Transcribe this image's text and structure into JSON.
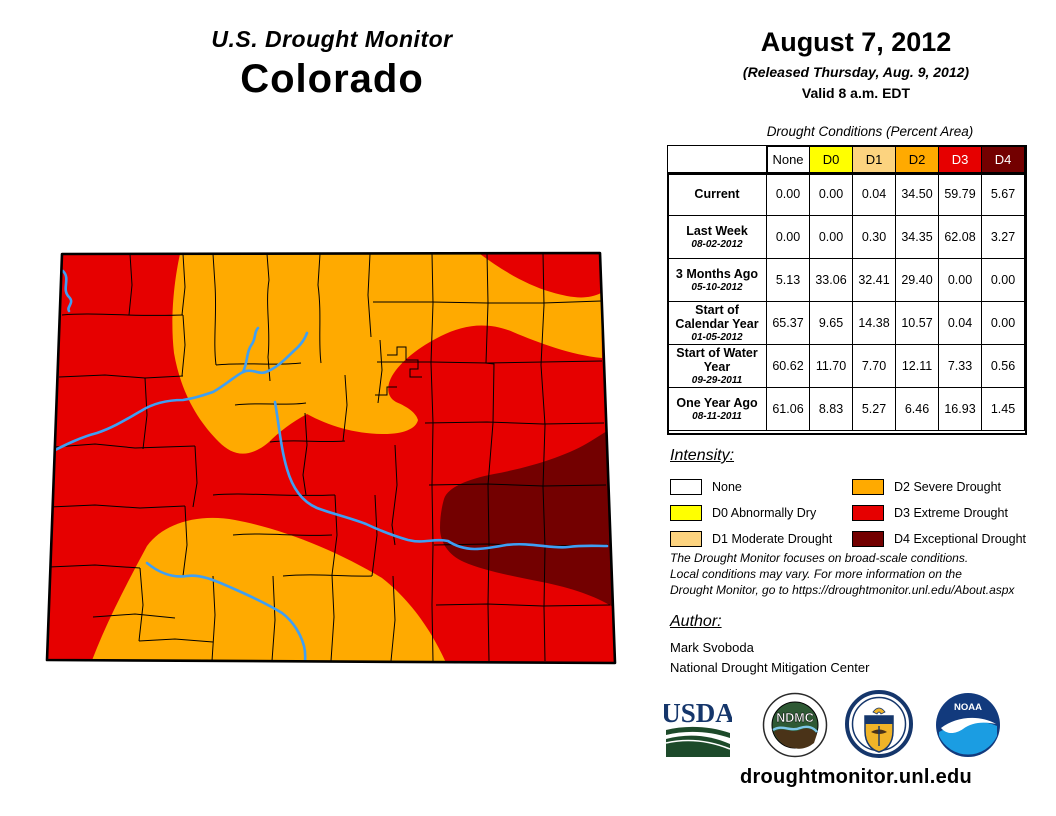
{
  "header": {
    "title": "U.S. Drought Monitor",
    "state": "Colorado",
    "date": "August 7, 2012",
    "released": "(Released Thursday, Aug. 9, 2012)",
    "valid": "Valid 8 a.m. EDT"
  },
  "table": {
    "title": "Drought Conditions (Percent Area)",
    "columns": [
      "None",
      "D0",
      "D1",
      "D2",
      "D3",
      "D4"
    ],
    "column_colors": [
      "#FFFFFF",
      "#FFFF00",
      "#FCD37F",
      "#FFAA00",
      "#E60000",
      "#730000"
    ],
    "column_text_colors": [
      "#000000",
      "#000000",
      "#000000",
      "#000000",
      "#FFFFFF",
      "#FFFFFF"
    ],
    "rows": [
      {
        "label": "Current",
        "date": "",
        "values": [
          "0.00",
          "0.00",
          "0.04",
          "34.50",
          "59.79",
          "5.67"
        ]
      },
      {
        "label": "Last Week",
        "date": "08-02-2012",
        "values": [
          "0.00",
          "0.00",
          "0.30",
          "34.35",
          "62.08",
          "3.27"
        ]
      },
      {
        "label": "3 Months Ago",
        "date": "05-10-2012",
        "values": [
          "5.13",
          "33.06",
          "32.41",
          "29.40",
          "0.00",
          "0.00"
        ]
      },
      {
        "label": "Start of Calendar Year",
        "date": "01-05-2012",
        "values": [
          "65.37",
          "9.65",
          "14.38",
          "10.57",
          "0.04",
          "0.00"
        ]
      },
      {
        "label": "Start of Water Year",
        "date": "09-29-2011",
        "values": [
          "60.62",
          "11.70",
          "7.70",
          "12.11",
          "7.33",
          "0.56"
        ]
      },
      {
        "label": "One Year Ago",
        "date": "08-11-2011",
        "values": [
          "61.06",
          "8.83",
          "5.27",
          "6.46",
          "16.93",
          "1.45"
        ]
      }
    ]
  },
  "legend": {
    "title": "Intensity:",
    "items": [
      {
        "label": "None",
        "color": "#FFFFFF"
      },
      {
        "label": "D0 Abnormally Dry",
        "color": "#FFFF00"
      },
      {
        "label": "D1 Moderate Drought",
        "color": "#FCD37F"
      },
      {
        "label": "D2 Severe Drought",
        "color": "#FFAA00"
      },
      {
        "label": "D3 Extreme Drought",
        "color": "#E60000"
      },
      {
        "label": "D4 Exceptional Drought",
        "color": "#730000"
      }
    ]
  },
  "disclaimer": [
    "The Drought Monitor focuses on broad-scale conditions.",
    "Local conditions may vary. For more information on the",
    "Drought Monitor, go to https://droughtmonitor.unl.edu/About.aspx"
  ],
  "author": {
    "title": "Author:",
    "name": "Mark Svoboda",
    "org": "National Drought Mitigation Center"
  },
  "logos": {
    "usda": "USDA",
    "ndmc": "NDMC",
    "noaa": "NOAA"
  },
  "footer": {
    "url": "droughtmonitor.unl.edu"
  },
  "map": {
    "colors": {
      "d2_severe": "#FFAA00",
      "d3_extreme": "#E60000",
      "d4_exceptional": "#730000",
      "river": "#3F9FF3"
    }
  }
}
